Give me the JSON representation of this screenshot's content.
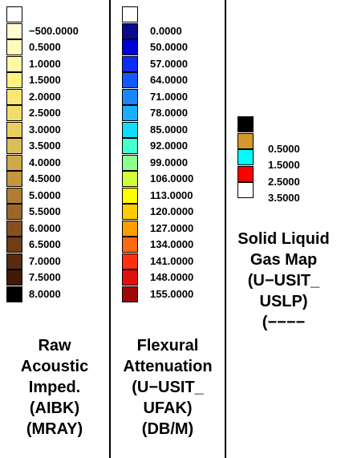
{
  "panels": [
    {
      "id": "aibk",
      "title_lines": [
        "Raw",
        "Acoustic",
        "Imped.",
        "(AIBK)",
        "(MRAY)"
      ],
      "bins": [
        {
          "color": "#ffffff",
          "label": ""
        },
        {
          "color": "#fffcd2",
          "label": "−500.0000"
        },
        {
          "color": "#fffbbb",
          "label": "0.5000"
        },
        {
          "color": "#fff8a4",
          "label": "1.0000"
        },
        {
          "color": "#fff27f",
          "label": "1.5000"
        },
        {
          "color": "#fbe872",
          "label": "2.0000"
        },
        {
          "color": "#f3dd6a",
          "label": "2.5000"
        },
        {
          "color": "#e9cf62",
          "label": "3.0000"
        },
        {
          "color": "#ddbd57",
          "label": "3.5000"
        },
        {
          "color": "#d1a94a",
          "label": "4.0000"
        },
        {
          "color": "#c4963e",
          "label": "4.5000"
        },
        {
          "color": "#b07d33",
          "label": "5.0000"
        },
        {
          "color": "#9c6629",
          "label": "5.5000"
        },
        {
          "color": "#87511f",
          "label": "6.0000"
        },
        {
          "color": "#703d17",
          "label": "6.5000"
        },
        {
          "color": "#582b10",
          "label": "7.0000"
        },
        {
          "color": "#3f1b08",
          "label": "7.5000"
        },
        {
          "color": "#000000",
          "label": "8.0000"
        }
      ]
    },
    {
      "id": "ufak",
      "title_lines": [
        "Flexural",
        "Attenuation",
        "(U−USIT_",
        "UFAK)",
        "(DB/M)"
      ],
      "bins": [
        {
          "color": "#ffffff",
          "label": ""
        },
        {
          "color": "#0a0a8c",
          "label": "0.0000"
        },
        {
          "color": "#0000d8",
          "label": "50.0000"
        },
        {
          "color": "#0a2cf5",
          "label": "57.0000"
        },
        {
          "color": "#1458ff",
          "label": "64.0000"
        },
        {
          "color": "#1d86ff",
          "label": "71.0000"
        },
        {
          "color": "#1aaeff",
          "label": "78.0000"
        },
        {
          "color": "#10dcff",
          "label": "85.0000"
        },
        {
          "color": "#44ffd0",
          "label": "92.0000"
        },
        {
          "color": "#8cff8c",
          "label": "99.0000"
        },
        {
          "color": "#d0ff3c",
          "label": "106.0000"
        },
        {
          "color": "#ffff00",
          "label": "113.0000"
        },
        {
          "color": "#ffcc00",
          "label": "120.0000"
        },
        {
          "color": "#ff9c00",
          "label": "127.0000"
        },
        {
          "color": "#ff6a10",
          "label": "134.0000"
        },
        {
          "color": "#ff3010",
          "label": "141.0000"
        },
        {
          "color": "#e01010",
          "label": "148.0000"
        },
        {
          "color": "#a00808",
          "label": "155.0000"
        }
      ]
    },
    {
      "id": "uslp",
      "title_lines": [
        "Solid Liquid",
        "Gas Map",
        "(U−USIT_",
        "USLP)",
        "(−−−−"
      ],
      "bins": [
        {
          "color": "#000000",
          "label": ""
        },
        {
          "color": "#d4982c",
          "label": "0.5000"
        },
        {
          "color": "#00ffff",
          "label": "1.5000"
        },
        {
          "color": "#ff0000",
          "label": "2.5000"
        },
        {
          "color": "#ffffff",
          "label": "3.5000"
        }
      ]
    }
  ]
}
